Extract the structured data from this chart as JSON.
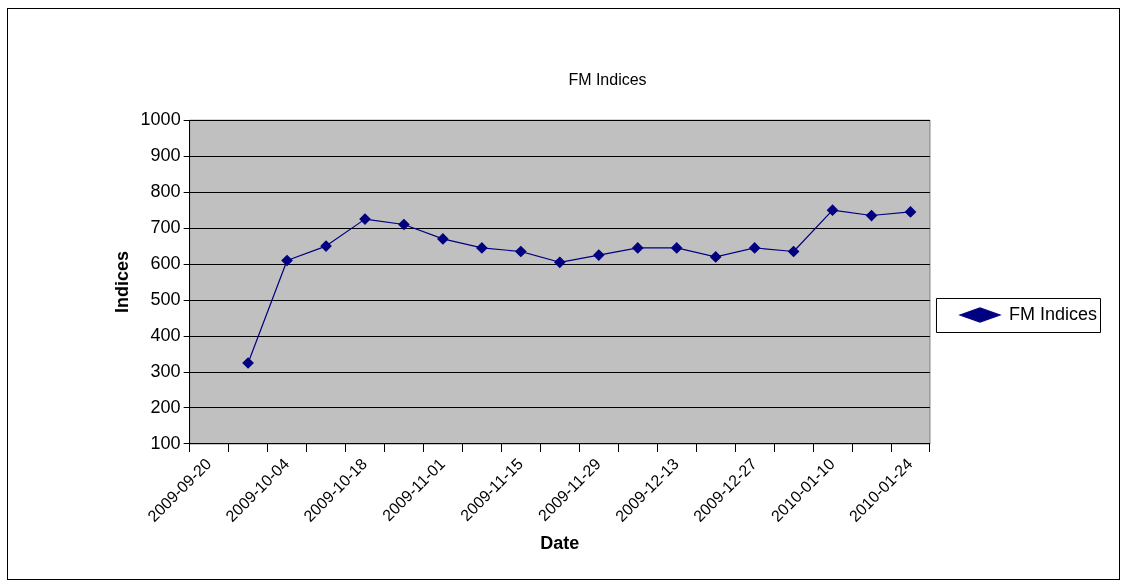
{
  "chart_data": {
    "type": "line",
    "title": "FM Indices",
    "xlabel": "Date",
    "ylabel": "Indices",
    "categories": [
      "2009-09-20",
      null,
      "2009-10-04",
      null,
      "2009-10-18",
      null,
      "2009-11-01",
      null,
      "2009-11-15",
      null,
      "2009-11-29",
      null,
      "2009-12-13",
      null,
      "2009-12-27",
      null,
      "2010-01-10",
      null,
      "2010-01-24"
    ],
    "series": [
      {
        "name": "FM Indices",
        "color": "#000080",
        "values": [
          null,
          325,
          610,
          650,
          725,
          710,
          670,
          645,
          635,
          605,
          625,
          645,
          645,
          620,
          645,
          635,
          750,
          735,
          745
        ]
      }
    ],
    "ylim": [
      100,
      1000
    ],
    "yticks": [
      100,
      200,
      300,
      400,
      500,
      600,
      700,
      800,
      900,
      1000
    ],
    "grid": "y",
    "legend": "right",
    "marker": "diamond",
    "line_style": "solid"
  }
}
